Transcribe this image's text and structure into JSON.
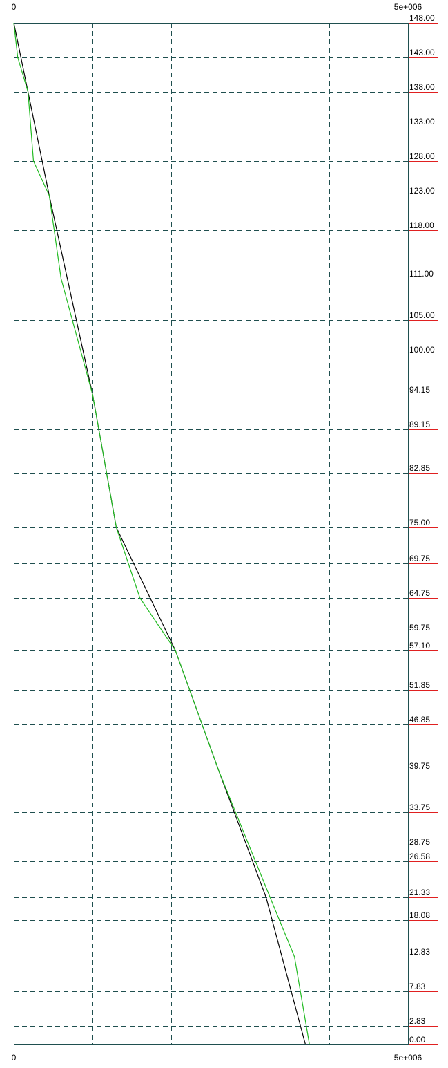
{
  "chart_data": {
    "type": "line",
    "x_axis": {
      "min_label": "0",
      "max_label": "5e+006",
      "xlim": [
        0,
        5000000
      ],
      "grid_divisions": 5
    },
    "y_axis": {
      "ylim": [
        0,
        148
      ],
      "scale": "level-indexed",
      "tick_labels": [
        "148.00",
        "143.00",
        "138.00",
        "133.00",
        "128.00",
        "123.00",
        "118.00",
        "111.00",
        "105.00",
        "100.00",
        "94.15",
        "89.15",
        "82.85",
        "75.00",
        "69.75",
        "64.75",
        "59.75",
        "57.10",
        "51.85",
        "46.85",
        "39.75",
        "33.75",
        "28.75",
        "26.58",
        "21.33",
        "18.08",
        "12.83",
        "7.83",
        "2.83",
        "0.00"
      ],
      "tick_values": [
        148.0,
        143.0,
        138.0,
        133.0,
        128.0,
        123.0,
        118.0,
        111.0,
        105.0,
        100.0,
        94.15,
        89.15,
        82.85,
        75.0,
        69.75,
        64.75,
        59.75,
        57.1,
        51.85,
        46.85,
        39.75,
        33.75,
        28.75,
        26.58,
        21.33,
        18.08,
        12.83,
        7.83,
        2.83,
        0.0
      ]
    },
    "grid": true,
    "colors": {
      "frame": "#1f4f4f",
      "grid": "#1f4f4f",
      "tick_underline": "#e02020",
      "series_black": "#000000",
      "series_green": "#22bb22"
    },
    "series": [
      {
        "color": "#000000",
        "points": [
          [
            0,
            148.0
          ],
          [
            180000,
            138.0
          ],
          [
            450000,
            123.0
          ],
          [
            1000000,
            94.15
          ],
          [
            1300000,
            75.0
          ],
          [
            2050000,
            57.1
          ],
          [
            2600000,
            39.75
          ],
          [
            3200000,
            21.33
          ],
          [
            3700000,
            0.0
          ]
        ]
      },
      {
        "color": "#22bb22",
        "points": [
          [
            0,
            148.0
          ],
          [
            50000,
            143.0
          ],
          [
            180000,
            138.0
          ],
          [
            250000,
            128.0
          ],
          [
            450000,
            123.0
          ],
          [
            600000,
            111.0
          ],
          [
            1000000,
            94.15
          ],
          [
            1300000,
            75.0
          ],
          [
            1600000,
            64.75
          ],
          [
            2050000,
            57.1
          ],
          [
            2600000,
            39.75
          ],
          [
            3250000,
            21.33
          ],
          [
            3560000,
            12.83
          ],
          [
            3750000,
            0.0
          ]
        ]
      }
    ]
  }
}
